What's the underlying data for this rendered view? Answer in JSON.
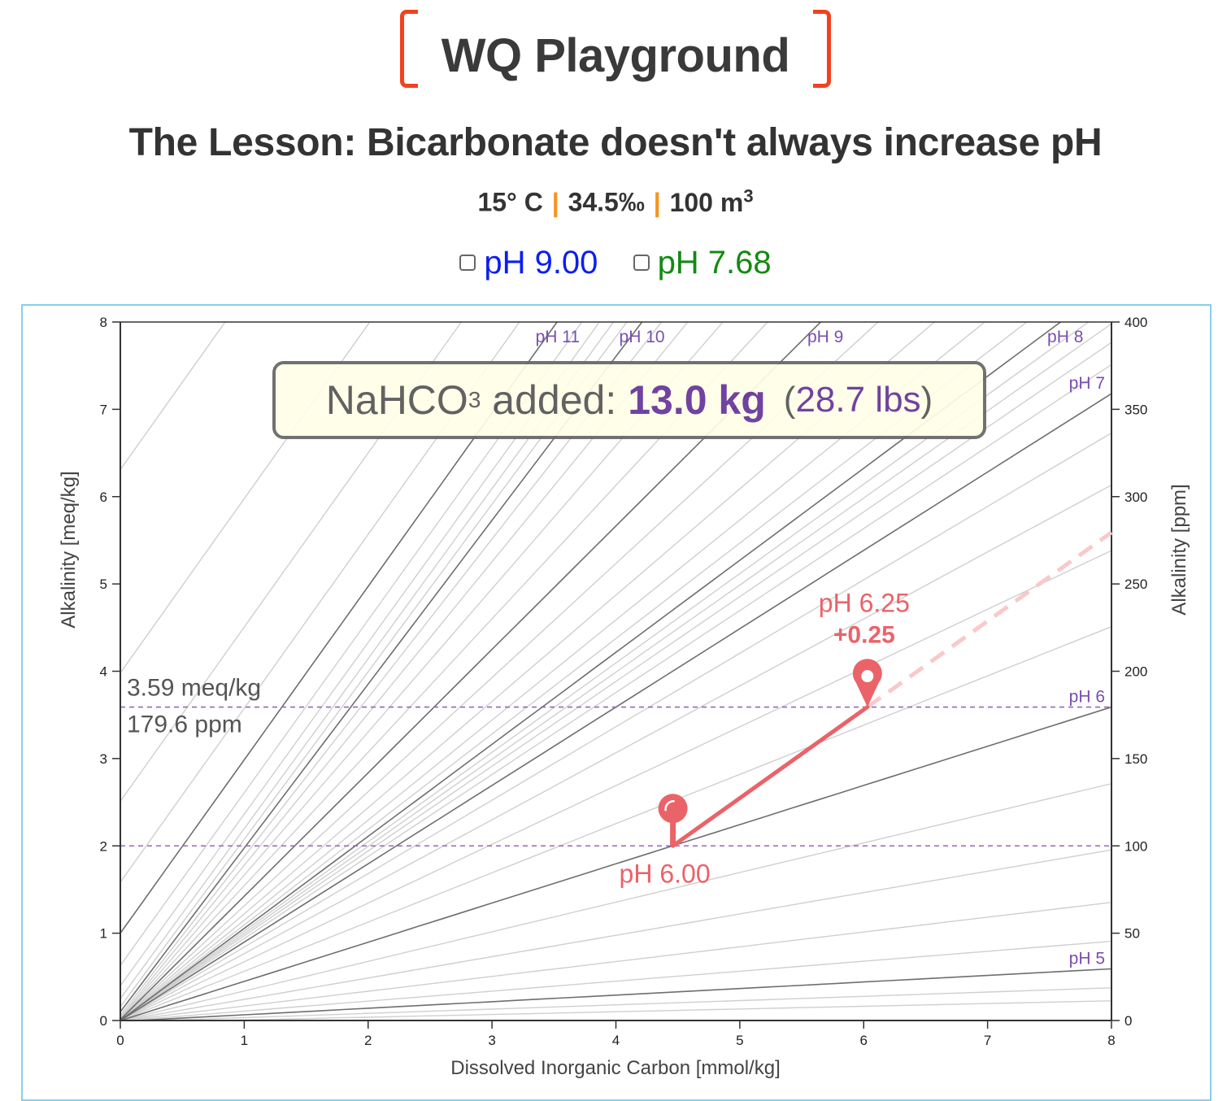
{
  "header": {
    "brand_title": "WQ Playground",
    "lesson_title": "The Lesson: Bicarbonate doesn't always increase pH",
    "conditions": {
      "temperature": "15° C",
      "salinity": "34.5‰",
      "volume": "100 m",
      "volume_exponent": "3",
      "separator": "|"
    }
  },
  "toggles": [
    {
      "label": "pH 9.00",
      "checked": false,
      "color": "#0a1ff0"
    },
    {
      "label": "pH 7.68",
      "checked": false,
      "color": "#138a13"
    }
  ],
  "banner": {
    "chemical": "NaHCO",
    "chemical_subscript": "3",
    "added_label": " added:",
    "mass": "13.0 kg",
    "lbs_open": "(",
    "lbs": "28.7 lbs",
    "lbs_close": ")"
  },
  "colors": {
    "brand_bracket": "#f2411f",
    "separator": "#f7931e",
    "accent_purple": "#663399",
    "point": "#ea6369",
    "point_projection": "#f9c9c9",
    "ph_label": "#7a4fb0",
    "frame": "#87ceeb"
  },
  "chart_data": {
    "type": "line",
    "title": "",
    "xlabel": "Dissolved Inorganic Carbon [mmol/kg]",
    "ylabel": "Alkalinity [meq/kg]",
    "y2label": "Alkalinity [ppm]",
    "xlim": [
      0,
      8
    ],
    "ylim": [
      0,
      8
    ],
    "y2lim": [
      0,
      400
    ],
    "x_ticks": [
      "0",
      "1",
      "2",
      "3",
      "4",
      "5",
      "6",
      "7",
      "8"
    ],
    "y_ticks": [
      "0",
      "1",
      "2",
      "3",
      "4",
      "5",
      "6",
      "7",
      "8"
    ],
    "y2_ticks": [
      "0",
      "50",
      "100",
      "150",
      "200",
      "250",
      "300",
      "350",
      "400"
    ],
    "grid": false,
    "isopleth_model": {
      "pK1": 6.09,
      "pK2": 9.15,
      "pKw": 14.0
    },
    "major_isopleths": [
      {
        "ph": 5,
        "label": "pH 5"
      },
      {
        "ph": 6,
        "label": "pH 6"
      },
      {
        "ph": 7,
        "label": "pH 7"
      },
      {
        "ph": 8,
        "label": "pH 8"
      },
      {
        "ph": 9,
        "label": "pH 9"
      },
      {
        "ph": 10,
        "label": "pH 10"
      },
      {
        "ph": 11,
        "label": "pH 11"
      }
    ],
    "minor_isopleth_step": 0.2,
    "minor_isopleth_range": [
      4.6,
      11.8
    ],
    "start_point": {
      "dic": 4.46,
      "alk": 2.0,
      "label": "pH 6.00"
    },
    "end_point": {
      "dic": 6.03,
      "alk": 3.59,
      "label": "pH 6.25",
      "delta": "+0.25"
    },
    "projection_end": {
      "dic": 8.0,
      "alk": 5.59
    },
    "reference_lines": [
      {
        "alk": 2.0
      },
      {
        "alk": 3.59,
        "label_meq": "3.59 meq/kg",
        "label_ppm": "179.6 ppm"
      }
    ]
  }
}
